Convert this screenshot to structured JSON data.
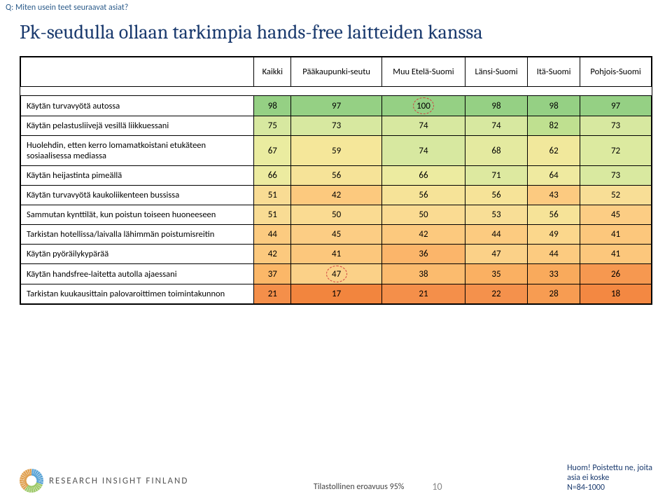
{
  "question": "Q: Miten usein teet seuraavat asiat?",
  "title": "Pk-seudulla ollaan tarkimpia hands-free laitteiden kanssa",
  "columns": [
    "Kaikki",
    "Pääkaupunki-seutu",
    "Muu Etelä-Suomi",
    "Länsi-Suomi",
    "Itä-Suomi",
    "Pohjois-Suomi"
  ],
  "rows": [
    {
      "label": "Käytän turvavyötä autossa",
      "values": [
        98,
        97,
        100,
        98,
        98,
        97
      ],
      "colors": [
        "#95d084",
        "#95d084",
        "#95d084",
        "#95d084",
        "#95d084",
        "#95d084"
      ],
      "ring_index": 2
    },
    {
      "label": "Käytän pelastusliivejä vesillä liikkuessani",
      "values": [
        75,
        73,
        74,
        74,
        82,
        73
      ],
      "colors": [
        "#d7e8a0",
        "#d7e8a0",
        "#d7e8a0",
        "#d7e8a0",
        "#bfe090",
        "#d7e8a0"
      ]
    },
    {
      "label": "Huolehdin, etten kerro lomamatkoistani etukäteen sosiaalisessa mediassa",
      "values": [
        67,
        59,
        74,
        68,
        62,
        72
      ],
      "colors": [
        "#eaeca0",
        "#f5e79a",
        "#d7e8a0",
        "#e4eaa0",
        "#f1e89c",
        "#dceaa0"
      ]
    },
    {
      "label": "Käytän heijastinta pimeällä",
      "values": [
        66,
        56,
        66,
        71,
        64,
        73
      ],
      "colors": [
        "#eceba0",
        "#f6e398",
        "#eceba0",
        "#dde9a0",
        "#efeaa0",
        "#d9e9a0"
      ]
    },
    {
      "label": "Käytän turvavyötä kaukoliikenteen bussissa",
      "values": [
        51,
        42,
        56,
        56,
        43,
        52
      ],
      "colors": [
        "#f9dc94",
        "#fcc97e",
        "#f6e398",
        "#f6e398",
        "#fcca80",
        "#f8de96"
      ]
    },
    {
      "label": "Sammutan kynttilät, kun poistun toiseen huoneeseen",
      "values": [
        51,
        50,
        50,
        53,
        56,
        45
      ],
      "colors": [
        "#f9dc94",
        "#fadb92",
        "#fadb92",
        "#f8de96",
        "#f6e398",
        "#fccd84"
      ]
    },
    {
      "label": "Tarkistan hotellissa/laivalla lähimmän poistumisreitin",
      "values": [
        44,
        45,
        42,
        44,
        49,
        41
      ],
      "colors": [
        "#fccb80",
        "#fccd84",
        "#fcc97e",
        "#fccb80",
        "#fbd78c",
        "#fcc77c"
      ]
    },
    {
      "label": "Käytän pyöräilykypärää",
      "values": [
        42,
        41,
        36,
        47,
        44,
        41
      ],
      "colors": [
        "#fcc97e",
        "#fcc77c",
        "#fbb56a",
        "#fbd188",
        "#fccb80",
        "#fcc77c"
      ]
    },
    {
      "label": "Käytän handsfree-laitetta autolla ajaessani",
      "values": [
        37,
        47,
        38,
        35,
        33,
        26
      ],
      "colors": [
        "#fbb768",
        "#fbd188",
        "#fbbb6e",
        "#fab062",
        "#f9aa5c",
        "#f69850"
      ],
      "ring_index": 1
    },
    {
      "label": "Tarkistan kuukausittain palovaroittimen toimintakunnon",
      "values": [
        21,
        17,
        21,
        22,
        28,
        18
      ],
      "colors": [
        "#f48f4a",
        "#f2853e",
        "#f48f4a",
        "#f4914c",
        "#f79c52",
        "#f38842"
      ]
    }
  ],
  "footer": {
    "brand": "RESEARCH INSIGHT FINLAND",
    "stat_note": "Tilastollinen eroavuus 95%",
    "page_no": "10",
    "note1": "Huom! Poistettu ne, joita",
    "note2": "asia ei koske",
    "note3": "N=84-1000"
  }
}
